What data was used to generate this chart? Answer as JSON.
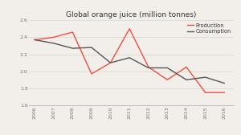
{
  "title": "Global orange juice (million tonnes)",
  "years": [
    2006,
    2007,
    2008,
    2009,
    2010,
    2011,
    2012,
    2013,
    2014,
    2015,
    2016
  ],
  "production": [
    2.37,
    2.4,
    2.46,
    1.97,
    2.1,
    2.5,
    2.05,
    1.9,
    2.05,
    1.75,
    1.75
  ],
  "consumption": [
    2.37,
    2.33,
    2.27,
    2.28,
    2.1,
    2.16,
    2.04,
    2.04,
    1.9,
    1.93,
    1.86
  ],
  "production_color": "#f05040",
  "consumption_color": "#555555",
  "ylim": [
    1.6,
    2.6
  ],
  "yticks": [
    1.6,
    1.8,
    2.0,
    2.2,
    2.4,
    2.6
  ],
  "bg_color": "#f2efea",
  "legend_labels": [
    "Production",
    "Consumption"
  ]
}
